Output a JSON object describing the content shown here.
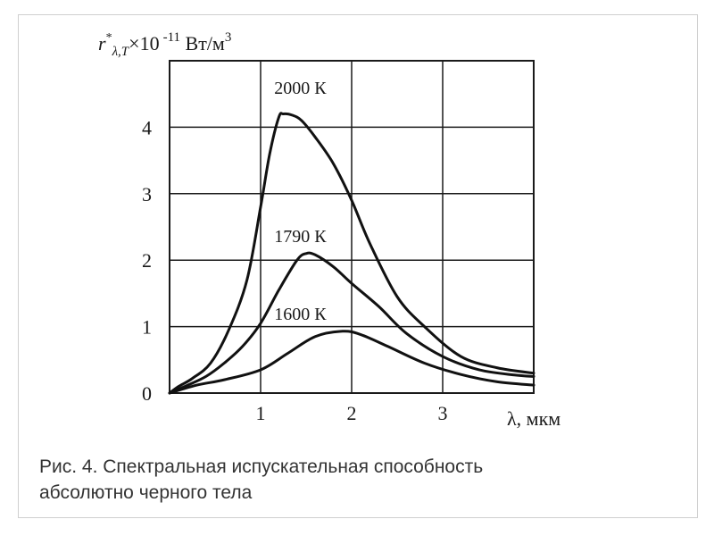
{
  "caption": {
    "line1": "Рис. 4. Спектральная испускательная способность",
    "line2": "абсолютно черного тела"
  },
  "chart_data": {
    "type": "line",
    "ylabel_parts": {
      "r": "r",
      "sup": "*",
      "sub": "λ,T",
      "mult": "×10",
      "exp": "-11",
      "unit": " Вт/м",
      "unit_exp": "3"
    },
    "xlabel": "λ, мкм",
    "xlim": [
      0,
      4
    ],
    "ylim": [
      0,
      5
    ],
    "x_ticks": [
      1,
      2,
      3
    ],
    "y_ticks": [
      0,
      1,
      2,
      3,
      4
    ],
    "grid": true,
    "series": [
      {
        "name": "2000 К",
        "label_at": [
          1.15,
          4.5
        ],
        "x": [
          0,
          0.1,
          0.25,
          0.45,
          0.65,
          0.85,
          1.0,
          1.1,
          1.2,
          1.25,
          1.35,
          1.45,
          1.6,
          1.8,
          2.0,
          2.2,
          2.5,
          2.8,
          3.2,
          3.6,
          4.0
        ],
        "y": [
          0,
          0.1,
          0.22,
          0.45,
          0.95,
          1.7,
          2.8,
          3.6,
          4.15,
          4.2,
          4.18,
          4.1,
          3.85,
          3.45,
          2.9,
          2.25,
          1.45,
          1.0,
          0.55,
          0.38,
          0.3
        ]
      },
      {
        "name": "1790 К",
        "label_at": [
          1.15,
          2.27
        ],
        "x": [
          0,
          0.2,
          0.4,
          0.6,
          0.8,
          1.0,
          1.2,
          1.4,
          1.5,
          1.6,
          1.8,
          2.0,
          2.3,
          2.6,
          3.0,
          3.4,
          3.8,
          4.0
        ],
        "y": [
          0,
          0.12,
          0.25,
          0.45,
          0.7,
          1.05,
          1.55,
          2.0,
          2.1,
          2.08,
          1.9,
          1.65,
          1.3,
          0.9,
          0.55,
          0.35,
          0.27,
          0.25
        ]
      },
      {
        "name": "1600 К",
        "label_at": [
          1.15,
          1.1
        ],
        "x": [
          0,
          0.3,
          0.6,
          1.0,
          1.3,
          1.6,
          1.9,
          2.1,
          2.4,
          2.8,
          3.2,
          3.6,
          4.0
        ],
        "y": [
          0,
          0.12,
          0.2,
          0.35,
          0.6,
          0.85,
          0.93,
          0.88,
          0.7,
          0.45,
          0.28,
          0.17,
          0.12
        ]
      }
    ]
  }
}
